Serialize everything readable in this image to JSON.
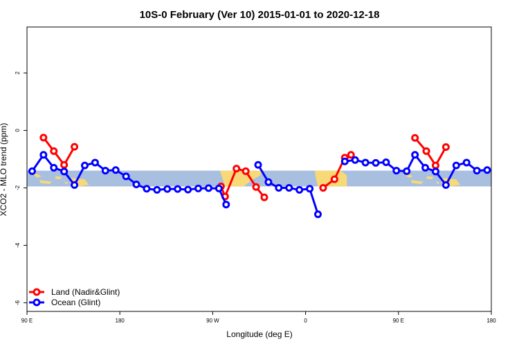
{
  "chart_data": {
    "type": "line",
    "title": "10S-0 February (Ver 10)   2015-01-01 to 2020-12-18",
    "xlabel": "Longitude (deg E)",
    "ylabel": "XCO2 - MLO trend (ppm)",
    "xlim": [
      90,
      540
    ],
    "ylim": [
      -6.3,
      3.6
    ],
    "x_ticks": [
      {
        "value": 90,
        "label": "90 E"
      },
      {
        "value": 180,
        "label": "180"
      },
      {
        "value": 270,
        "label": "90 W"
      },
      {
        "value": 360,
        "label": "0"
      },
      {
        "value": 450,
        "label": "90 E"
      },
      {
        "value": 540,
        "label": "180"
      }
    ],
    "y_ticks": [
      {
        "value": 2,
        "label": "2"
      },
      {
        "value": 0,
        "label": "0"
      },
      {
        "value": -2,
        "label": "-2"
      },
      {
        "value": -4,
        "label": "-4"
      },
      {
        "value": -6,
        "label": "-6"
      }
    ],
    "background_band": {
      "y_range": [
        -1.95,
        -1.4
      ],
      "ocean_color": "#a8bfe0",
      "land_color": "#f8d977"
    },
    "series": [
      {
        "name": "Land (Nadir&Glint)",
        "color": "#ff0000",
        "segments": [
          [
            [
              106,
              -0.25
            ],
            [
              116,
              -0.72
            ],
            [
              126,
              -1.2
            ],
            [
              136,
              -0.57
            ]
          ],
          [
            [
              278,
              -1.95
            ],
            [
              282,
              -2.3
            ],
            [
              293,
              -1.33
            ],
            [
              302,
              -1.42
            ],
            [
              312,
              -1.97
            ],
            [
              320,
              -2.33
            ]
          ],
          [
            [
              377,
              -2.0
            ],
            [
              388,
              -1.7
            ],
            [
              398,
              -0.95
            ],
            [
              404,
              -0.85
            ]
          ],
          [
            [
              466,
              -0.26
            ],
            [
              477,
              -0.72
            ],
            [
              486,
              -1.22
            ],
            [
              496,
              -0.58
            ]
          ]
        ]
      },
      {
        "name": "Ocean (Glint)",
        "color": "#0000ff",
        "segments": [
          [
            [
              95,
              -1.42
            ],
            [
              106,
              -0.85
            ],
            [
              116,
              -1.3
            ],
            [
              126,
              -1.43
            ],
            [
              136,
              -1.9
            ],
            [
              146,
              -1.22
            ],
            [
              156,
              -1.12
            ],
            [
              166,
              -1.4
            ],
            [
              176,
              -1.38
            ],
            [
              186,
              -1.6
            ],
            [
              196,
              -1.88
            ],
            [
              206,
              -2.03
            ],
            [
              216,
              -2.07
            ],
            [
              226,
              -2.04
            ],
            [
              236,
              -2.04
            ],
            [
              246,
              -2.06
            ],
            [
              256,
              -2.02
            ],
            [
              266,
              -2.01
            ],
            [
              276,
              -2.02
            ],
            [
              283,
              -2.58
            ]
          ],
          [
            [
              314,
              -1.2
            ],
            [
              324,
              -1.8
            ],
            [
              334,
              -2.0
            ],
            [
              344,
              -2.0
            ],
            [
              354,
              -2.07
            ],
            [
              364,
              -2.03
            ],
            [
              372,
              -2.92
            ]
          ],
          [
            [
              398,
              -1.08
            ],
            [
              408,
              -1.03
            ],
            [
              418,
              -1.12
            ],
            [
              428,
              -1.13
            ],
            [
              438,
              -1.11
            ],
            [
              448,
              -1.4
            ],
            [
              458,
              -1.42
            ],
            [
              466,
              -0.85
            ],
            [
              476,
              -1.3
            ],
            [
              486,
              -1.43
            ],
            [
              496,
              -1.9
            ],
            [
              506,
              -1.22
            ],
            [
              516,
              -1.12
            ],
            [
              526,
              -1.4
            ],
            [
              536,
              -1.38
            ]
          ]
        ]
      }
    ],
    "legend": {
      "position": "bottom-left"
    }
  }
}
